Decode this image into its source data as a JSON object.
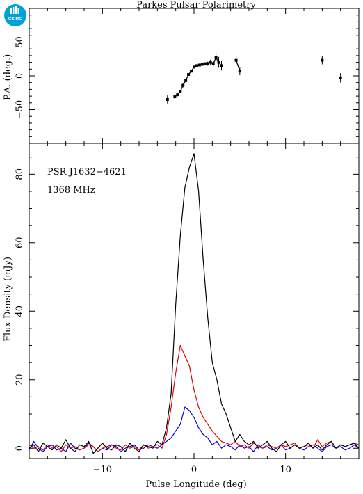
{
  "title": "Parkes Pulsar Polarimetry",
  "logo_text": "CSIRO",
  "colors": {
    "total": "#000000",
    "linear": "#e00000",
    "circular": "#0000e0",
    "logo": "#00a0d8"
  },
  "chart_data": [
    {
      "type": "scatter",
      "panel": "position-angle",
      "ylabel": "P.A. (deg.)",
      "xlabel": "",
      "xlim": [
        -18,
        18
      ],
      "ylim": [
        -100,
        100
      ],
      "yticks": [
        -50,
        0,
        50
      ],
      "ytick_labels": [
        "−50",
        "0",
        "50"
      ],
      "connected_segments": [
        [
          -2.1,
          3.0
        ],
        [
          4.6,
          5.0
        ]
      ],
      "points": [
        {
          "x": -2.9,
          "y": -35,
          "err": 6
        },
        {
          "x": -2.1,
          "y": -31,
          "err": 3
        },
        {
          "x": -1.8,
          "y": -28,
          "err": 2
        },
        {
          "x": -1.5,
          "y": -23,
          "err": 2
        },
        {
          "x": -1.2,
          "y": -14,
          "err": 3
        },
        {
          "x": -0.9,
          "y": -7,
          "err": 2
        },
        {
          "x": -0.6,
          "y": 2,
          "err": 2
        },
        {
          "x": -0.3,
          "y": 7,
          "err": 1
        },
        {
          "x": 0.0,
          "y": 13,
          "err": 1
        },
        {
          "x": 0.3,
          "y": 15,
          "err": 1
        },
        {
          "x": 0.6,
          "y": 16,
          "err": 1
        },
        {
          "x": 0.9,
          "y": 17,
          "err": 1
        },
        {
          "x": 1.2,
          "y": 18,
          "err": 2
        },
        {
          "x": 1.5,
          "y": 18,
          "err": 3
        },
        {
          "x": 1.8,
          "y": 20,
          "err": 4
        },
        {
          "x": 2.1,
          "y": 18,
          "err": 5
        },
        {
          "x": 2.4,
          "y": 27,
          "err": 7
        },
        {
          "x": 2.7,
          "y": 20,
          "err": 8
        },
        {
          "x": 3.0,
          "y": 15,
          "err": 7
        },
        {
          "x": 4.6,
          "y": 23,
          "err": 6
        },
        {
          "x": 5.0,
          "y": 7,
          "err": 6
        },
        {
          "x": 14.0,
          "y": 23,
          "err": 6
        },
        {
          "x": 16.0,
          "y": -3,
          "err": 7
        }
      ]
    },
    {
      "type": "line",
      "panel": "profile",
      "annotations": [
        "PSR J1632−4621",
        "1368 MHz"
      ],
      "xlabel": "Pulse Longitude (deg)",
      "ylabel": "Flux Density (mJy)",
      "xlim": [
        -18,
        18
      ],
      "ylim": [
        -3,
        89
      ],
      "xticks": [
        -10,
        0,
        10
      ],
      "xtick_labels": [
        "−10",
        "0",
        "10"
      ],
      "yticks": [
        0,
        20,
        40,
        60,
        80
      ],
      "ytick_labels": [
        "0",
        "20",
        "40",
        "60",
        "80"
      ],
      "x": [
        -18.0,
        -17.5,
        -17.0,
        -16.5,
        -16.0,
        -15.5,
        -15.0,
        -14.5,
        -14.0,
        -13.5,
        -13.0,
        -12.5,
        -12.0,
        -11.5,
        -11.0,
        -10.5,
        -10.0,
        -9.5,
        -9.0,
        -8.5,
        -8.0,
        -7.5,
        -7.0,
        -6.5,
        -6.0,
        -5.5,
        -5.0,
        -4.5,
        -4.0,
        -3.5,
        -3.0,
        -2.5,
        -2.0,
        -1.5,
        -1.0,
        -0.5,
        0.0,
        0.5,
        1.0,
        1.5,
        2.0,
        2.5,
        3.0,
        3.5,
        4.0,
        4.5,
        5.0,
        5.5,
        6.0,
        6.5,
        7.0,
        7.5,
        8.0,
        8.5,
        9.0,
        9.5,
        10.0,
        10.5,
        11.0,
        11.5,
        12.0,
        12.5,
        13.0,
        13.5,
        14.0,
        14.5,
        15.0,
        15.5,
        16.0,
        16.5,
        17.0,
        17.5,
        18.0
      ],
      "series": [
        {
          "color": "#000000",
          "values": [
            0,
            1,
            -1,
            1.5,
            0.5,
            -0.5,
            1,
            0,
            2.5,
            0,
            -1,
            1,
            0.5,
            2,
            -1.5,
            0,
            1.5,
            0,
            -0.5,
            1,
            0.5,
            -1,
            1.5,
            0,
            -1,
            1,
            0.5,
            0,
            2,
            1,
            6,
            16,
            42,
            62,
            76,
            82,
            86,
            75,
            55,
            38,
            25,
            20,
            13,
            10,
            6,
            2,
            4,
            2,
            1,
            2,
            0,
            1,
            2,
            0,
            -1,
            1,
            2,
            0,
            1,
            0,
            0.5,
            1.5,
            0,
            1,
            -0.5,
            1,
            2,
            0,
            1,
            0.5,
            1,
            1.5,
            0
          ]
        },
        {
          "color": "#e00000",
          "values": [
            1,
            0,
            0.5,
            -0.5,
            1,
            0,
            0.5,
            -1,
            1,
            0,
            0.5,
            -0.5,
            0,
            1,
            0.5,
            -1,
            0,
            0.5,
            1,
            0,
            -0.5,
            1,
            0,
            0.5,
            -0.5,
            1,
            0,
            0.5,
            1,
            0,
            4,
            12,
            22,
            30,
            27,
            24,
            17,
            12,
            9,
            7,
            5,
            3.5,
            2,
            1.5,
            1,
            2,
            0.5,
            1,
            0,
            1.5,
            0.5,
            0,
            1,
            0.5,
            0,
            1,
            0.5,
            1,
            1.5,
            0,
            0.5,
            1,
            0,
            2.5,
            0.5,
            1.5,
            2,
            0,
            1,
            0.5,
            1,
            1.5,
            1
          ]
        },
        {
          "color": "#0000e0",
          "values": [
            -0.5,
            2,
            0,
            -1,
            0.5,
            1,
            -0.5,
            0,
            -1,
            1.5,
            0,
            -0.5,
            0,
            1.5,
            0.5,
            -1,
            0,
            -0.5,
            1,
            0.5,
            -1,
            0,
            0.5,
            1,
            -0.5,
            0,
            1,
            0.5,
            0,
            1,
            2,
            3,
            5,
            7,
            12,
            11,
            9,
            6,
            4,
            3,
            1,
            2,
            0,
            1,
            0.5,
            -0.5,
            1,
            0,
            0.5,
            -1,
            1,
            0,
            0.5,
            -0.5,
            0,
            1,
            -0.5,
            0,
            1,
            0,
            -0.5,
            0.5,
            1,
            0,
            -1,
            0.5,
            1,
            0,
            0.5,
            -0.5,
            0,
            1,
            0
          ]
        }
      ]
    }
  ]
}
